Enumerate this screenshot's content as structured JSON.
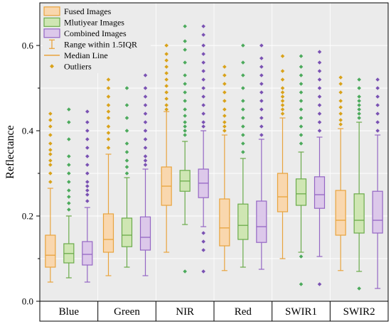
{
  "chart_data": {
    "type": "boxplot",
    "ylabel": "Reflectance",
    "ylim": [
      0.0,
      0.7
    ],
    "yticks": [
      "0.0",
      "0.2",
      "0.4",
      "0.6"
    ],
    "categories": [
      "Blue",
      "Green",
      "NIR",
      "Red",
      "SWIR1",
      "SWIR2"
    ],
    "legend": {
      "placement": "top-left",
      "entries": [
        "Fused Images",
        "Mlutiyear Images",
        "Combined Images",
        "Range within 1.5IQR",
        "Median Line",
        "Outliers"
      ]
    },
    "series": [
      {
        "name": "Fused Images",
        "fill": "#f9d7ae",
        "stroke": "#e8a33d",
        "outlier_color": "#d9a21a",
        "boxes": [
          {
            "min": 0.045,
            "q1": 0.08,
            "median": 0.108,
            "q3": 0.155,
            "max": 0.265,
            "outliers": [
              0.28,
              0.3,
              0.32,
              0.33,
              0.345,
              0.355,
              0.37,
              0.39,
              0.41,
              0.425,
              0.44
            ]
          },
          {
            "min": 0.06,
            "q1": 0.115,
            "median": 0.145,
            "q3": 0.205,
            "max": 0.345,
            "outliers": [
              0.36,
              0.38,
              0.395,
              0.41,
              0.43,
              0.445,
              0.46,
              0.48,
              0.5,
              0.52
            ]
          },
          {
            "min": 0.115,
            "q1": 0.225,
            "median": 0.27,
            "q3": 0.315,
            "max": 0.445,
            "outliers": [
              0.45,
              0.46,
              0.475,
              0.49,
              0.505,
              0.52,
              0.535,
              0.55,
              0.565,
              0.58,
              0.6
            ]
          },
          {
            "min": 0.072,
            "q1": 0.13,
            "median": 0.172,
            "q3": 0.24,
            "max": 0.39,
            "outliers": [
              0.4,
              0.41,
              0.42,
              0.435,
              0.45,
              0.47,
              0.49,
              0.51,
              0.53,
              0.55
            ]
          },
          {
            "min": 0.1,
            "q1": 0.21,
            "median": 0.245,
            "q3": 0.3,
            "max": 0.43,
            "outliers": [
              0.44,
              0.45,
              0.46,
              0.47,
              0.48,
              0.49,
              0.5,
              0.52,
              0.54,
              0.575
            ]
          },
          {
            "min": 0.072,
            "q1": 0.155,
            "median": 0.19,
            "q3": 0.26,
            "max": 0.405,
            "outliers": [
              0.415,
              0.425,
              0.44,
              0.455,
              0.47,
              0.49,
              0.51,
              0.525
            ]
          }
        ]
      },
      {
        "name": "Mlutiyear Images",
        "fill": "#cfe6b3",
        "stroke": "#6aab4a",
        "outlier_color": "#4caa5c",
        "boxes": [
          {
            "min": 0.055,
            "q1": 0.09,
            "median": 0.112,
            "q3": 0.135,
            "max": 0.2,
            "outliers": [
              0.215,
              0.23,
              0.245,
              0.26,
              0.28,
              0.3,
              0.32,
              0.34,
              0.38,
              0.42,
              0.45
            ]
          },
          {
            "min": 0.08,
            "q1": 0.128,
            "median": 0.155,
            "q3": 0.195,
            "max": 0.29,
            "outliers": [
              0.3,
              0.315,
              0.33,
              0.35,
              0.37,
              0.4,
              0.43,
              0.46,
              0.5,
              0.54
            ]
          },
          {
            "min": 0.18,
            "q1": 0.258,
            "median": 0.282,
            "q3": 0.307,
            "max": 0.375,
            "outliers": [
              0.07,
              0.39,
              0.4,
              0.41,
              0.42,
              0.435,
              0.45,
              0.47,
              0.49,
              0.51,
              0.53,
              0.56,
              0.59,
              0.61,
              0.645
            ]
          },
          {
            "min": 0.08,
            "q1": 0.145,
            "median": 0.178,
            "q3": 0.228,
            "max": 0.335,
            "outliers": [
              0.35,
              0.37,
              0.39,
              0.41,
              0.43,
              0.45,
              0.47,
              0.5,
              0.53,
              0.56,
              0.6
            ]
          },
          {
            "min": 0.115,
            "q1": 0.225,
            "median": 0.252,
            "q3": 0.287,
            "max": 0.35,
            "outliers": [
              0.04,
              0.105,
              0.37,
              0.39,
              0.41,
              0.43,
              0.45,
              0.47,
              0.49,
              0.51,
              0.53,
              0.55,
              0.575
            ]
          },
          {
            "min": 0.07,
            "q1": 0.16,
            "median": 0.19,
            "q3": 0.252,
            "max": 0.42,
            "outliers": [
              0.03,
              0.43,
              0.44,
              0.45,
              0.46,
              0.47,
              0.48,
              0.5,
              0.52
            ]
          }
        ]
      },
      {
        "name": "Combined Images",
        "fill": "#dcc8ea",
        "stroke": "#9466c4",
        "outlier_color": "#7a52b3",
        "boxes": [
          {
            "min": 0.045,
            "q1": 0.085,
            "median": 0.11,
            "q3": 0.14,
            "max": 0.22,
            "outliers": [
              0.235,
              0.25,
              0.26,
              0.27,
              0.28,
              0.3,
              0.32,
              0.34,
              0.36,
              0.38,
              0.4,
              0.42,
              0.445
            ]
          },
          {
            "min": 0.06,
            "q1": 0.12,
            "median": 0.15,
            "q3": 0.198,
            "max": 0.31,
            "outliers": [
              0.32,
              0.33,
              0.34,
              0.36,
              0.38,
              0.4,
              0.42,
              0.44,
              0.46,
              0.48,
              0.5,
              0.53
            ]
          },
          {
            "min": 0.175,
            "q1": 0.243,
            "median": 0.277,
            "q3": 0.31,
            "max": 0.4,
            "outliers": [
              0.07,
              0.12,
              0.14,
              0.16,
              0.41,
              0.42,
              0.44,
              0.46,
              0.48,
              0.5,
              0.52,
              0.54,
              0.56,
              0.58,
              0.6,
              0.625,
              0.645
            ]
          },
          {
            "min": 0.075,
            "q1": 0.138,
            "median": 0.175,
            "q3": 0.235,
            "max": 0.38,
            "outliers": [
              0.39,
              0.41,
              0.43,
              0.45,
              0.47,
              0.49,
              0.51,
              0.53,
              0.55,
              0.57,
              0.6
            ]
          },
          {
            "min": 0.105,
            "q1": 0.218,
            "median": 0.25,
            "q3": 0.292,
            "max": 0.385,
            "outliers": [
              0.04,
              0.4,
              0.42,
              0.44,
              0.46,
              0.48,
              0.5,
              0.52,
              0.54,
              0.56,
              0.585
            ]
          },
          {
            "min": 0.03,
            "q1": 0.16,
            "median": 0.19,
            "q3": 0.258,
            "max": 0.39,
            "outliers": [
              0.4,
              0.42,
              0.44,
              0.46,
              0.48,
              0.5,
              0.52
            ]
          }
        ]
      }
    ]
  }
}
